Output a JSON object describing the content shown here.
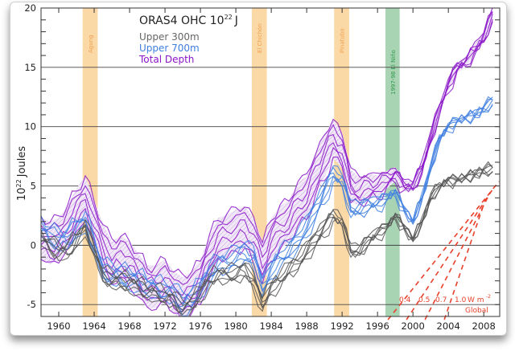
{
  "chart_data": {
    "type": "line",
    "title": "ORAS4  OHC  10^22 J",
    "title_main": "ORAS4  OHC  10",
    "title_exp": "22",
    "title_unit": "J",
    "xlabel": "",
    "ylabel_base": "10",
    "ylabel_exp": "22",
    "ylabel_unit": "Joules",
    "xlim": [
      1958,
      2009.8
    ],
    "ylim": [
      -6,
      20
    ],
    "grid": true,
    "y_gridlines": [
      -5,
      0,
      5,
      10,
      15
    ],
    "x_ticks": [
      1960,
      1964,
      1968,
      1972,
      1976,
      1980,
      1984,
      1988,
      1992,
      1996,
      2000,
      2004,
      2008
    ],
    "x_tick_labels": [
      "1960",
      "1964",
      "1968",
      "1972",
      "1976",
      "1980",
      "1984",
      "1988",
      "1992",
      "1996",
      "2000",
      "2004",
      "2008"
    ],
    "y_ticks": [
      -5,
      0,
      5,
      10,
      15,
      20
    ],
    "y_tick_labels": [
      "-5",
      "0",
      "5",
      "10",
      "15",
      "20"
    ],
    "legend_position": "top-left",
    "legend": [
      {
        "name": "Upper 300m",
        "color": "#666666"
      },
      {
        "name": "Upper 700m",
        "color": "#3f7fe0"
      },
      {
        "name": "Total Depth",
        "color": "#8a14c8"
      }
    ],
    "bands": [
      {
        "label": "Agung",
        "start": 1962.7,
        "end": 1964.4,
        "color": "#fbd9a6",
        "text_color": "#f0a050"
      },
      {
        "label": "El Chichón",
        "start": 1981.8,
        "end": 1983.5,
        "color": "#fbd9a6",
        "text_color": "#f0a050"
      },
      {
        "label": "Pinatubo",
        "start": 1991.1,
        "end": 1992.8,
        "color": "#fbd9a6",
        "text_color": "#f0a050"
      },
      {
        "label": "1997-98 El Niño",
        "start": 1996.9,
        "end": 1998.5,
        "color": "#a9d4b4",
        "text_color": "#2e9a4a"
      }
    ],
    "x": [
      1958,
      1959,
      1960,
      1961,
      1962,
      1963,
      1964,
      1965,
      1966,
      1967,
      1968,
      1969,
      1970,
      1971,
      1972,
      1973,
      1974,
      1975,
      1976,
      1977,
      1978,
      1979,
      1980,
      1981,
      1982,
      1983,
      1984,
      1985,
      1986,
      1987,
      1988,
      1989,
      1990,
      1991,
      1992,
      1993,
      1994,
      1995,
      1996,
      1997,
      1998,
      1999,
      2000,
      2001,
      2002,
      2003,
      2004,
      2005,
      2006,
      2007,
      2008,
      2009
    ],
    "series": [
      {
        "name": "Total Depth",
        "color": "#8a14c8",
        "spread": 1.8,
        "values": [
          0.5,
          0.2,
          0.5,
          1.5,
          3.0,
          4.0,
          2.0,
          0.0,
          -1.5,
          -1.0,
          -1.5,
          -2.5,
          -3.5,
          -3.5,
          -3.0,
          -4.0,
          -4.5,
          -4.0,
          -3.0,
          -1.0,
          0.5,
          0.8,
          1.2,
          1.5,
          0.5,
          -1.5,
          0.5,
          1.5,
          2.0,
          3.5,
          4.0,
          6.0,
          7.5,
          9.0,
          8.0,
          5.0,
          4.5,
          5.0,
          5.0,
          5.5,
          6.0,
          5.0,
          5.0,
          6.5,
          9.0,
          11.5,
          13.5,
          15.0,
          15.5,
          16.5,
          17.5,
          19.5
        ]
      },
      {
        "name": "Upper 700m",
        "color": "#3f7fe0",
        "spread": 0.8,
        "values": [
          1.5,
          0.8,
          0.5,
          0.5,
          1.5,
          2.0,
          0.0,
          -2.0,
          -2.5,
          -2.5,
          -2.8,
          -3.0,
          -3.5,
          -3.5,
          -4.0,
          -4.0,
          -5.0,
          -4.5,
          -3.5,
          -2.5,
          -1.5,
          -1.5,
          -1.0,
          -0.5,
          -1.0,
          -3.5,
          -2.0,
          -1.0,
          -0.5,
          0.5,
          1.5,
          3.0,
          4.5,
          6.0,
          5.5,
          3.0,
          3.0,
          3.5,
          3.5,
          4.0,
          4.5,
          3.0,
          2.0,
          4.0,
          6.5,
          9.0,
          10.0,
          10.5,
          10.8,
          11.0,
          11.5,
          12.2
        ]
      },
      {
        "name": "Upper 300m",
        "color": "#555555",
        "spread": 0.6,
        "values": [
          0.5,
          0.0,
          -0.5,
          -0.5,
          0.5,
          1.5,
          -0.5,
          -2.5,
          -3.0,
          -3.0,
          -3.2,
          -3.5,
          -4.0,
          -4.0,
          -4.5,
          -4.5,
          -5.5,
          -5.0,
          -4.0,
          -3.0,
          -2.5,
          -2.5,
          -2.5,
          -2.0,
          -3.0,
          -5.0,
          -3.5,
          -3.0,
          -2.0,
          -1.5,
          -0.5,
          0.5,
          1.5,
          2.5,
          2.0,
          -0.5,
          -0.5,
          0.5,
          1.0,
          1.5,
          2.5,
          1.5,
          0.5,
          2.0,
          4.0,
          5.0,
          5.5,
          5.5,
          5.8,
          6.0,
          6.3,
          6.5
        ]
      }
    ],
    "trend_lines": {
      "color": "#e8402a",
      "start_year": 1997,
      "rates": [
        "0.4",
        "0.5",
        "0.7",
        "1.0"
      ],
      "unit": "W m",
      "unit_exp": "-2",
      "region_label": "Global"
    }
  }
}
